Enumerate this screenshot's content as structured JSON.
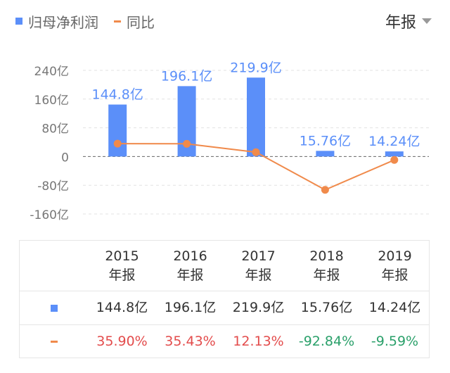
{
  "legend": {
    "bar_label": "归母净利润",
    "line_label": "同比"
  },
  "period_selector": {
    "label": "年报"
  },
  "colors": {
    "bar": "#5b8ff9",
    "line": "#f08a4b",
    "positive": "#e34c4c",
    "negative": "#2aa06a",
    "axis_text": "#777777",
    "bar_label": "#5b8ff9"
  },
  "chart_data": {
    "type": "bar",
    "categories": [
      "2015",
      "2016",
      "2017",
      "2018",
      "2019"
    ],
    "series": [
      {
        "name": "归母净利润",
        "type": "bar",
        "values": [
          144.8,
          196.1,
          219.9,
          15.76,
          14.24
        ],
        "value_labels": [
          "144.8亿",
          "196.1亿",
          "219.9亿",
          "15.76亿",
          "14.24亿"
        ],
        "unit": "亿"
      },
      {
        "name": "同比",
        "type": "line",
        "values": [
          35.9,
          35.43,
          12.13,
          -92.84,
          -9.59
        ],
        "unit": "%"
      }
    ],
    "y_ticks": [
      "240亿",
      "160亿",
      "80亿",
      "0",
      "-80亿",
      "-160亿"
    ],
    "ylim": [
      -160,
      240
    ],
    "grid": true
  },
  "table": {
    "header_year": [
      "2015",
      "2016",
      "2017",
      "2018",
      "2019"
    ],
    "header_period": [
      "年报",
      "年报",
      "年报",
      "年报",
      "年报"
    ],
    "profit": [
      "144.8亿",
      "196.1亿",
      "219.9亿",
      "15.76亿",
      "14.24亿"
    ],
    "yoy": [
      "35.90%",
      "35.43%",
      "12.13%",
      "-92.84%",
      "-9.59%"
    ]
  }
}
